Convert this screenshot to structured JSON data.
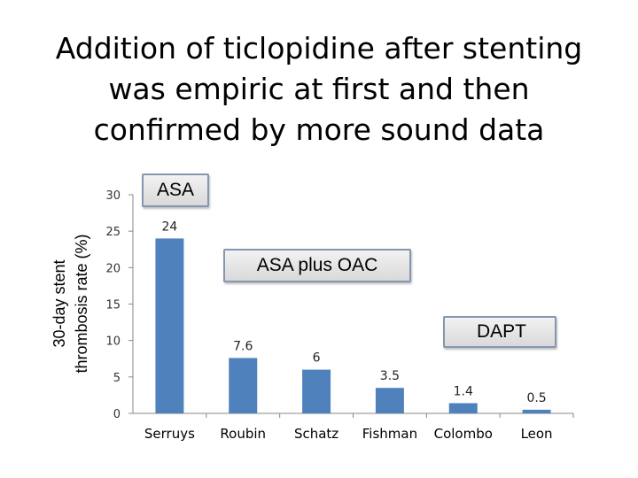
{
  "slide": {
    "title_lines": [
      "Addition of ticlopidine after stenting",
      "was empiric at first and then",
      "confirmed by more sound data"
    ]
  },
  "annotations": {
    "asa": "ASA",
    "asa_oac": "ASA plus OAC",
    "dapt": "DAPT"
  },
  "colors": {
    "bar": "#4f81bd",
    "axis": "#888888"
  },
  "chart_data": {
    "type": "bar",
    "categories": [
      "Serruys",
      "Roubin",
      "Schatz",
      "Fishman",
      "Colombo",
      "Leon"
    ],
    "values": [
      24,
      7.6,
      6,
      3.5,
      1.4,
      0.5
    ],
    "value_labels": [
      "24",
      "7.6",
      "6",
      "3.5",
      "1.4",
      "0.5"
    ],
    "title": "",
    "xlabel": "",
    "ylabel_lines": [
      "30-day stent",
      "thrombosis rate (%)"
    ],
    "ylim": [
      0,
      30
    ],
    "yticks": [
      0,
      5,
      10,
      15,
      20,
      25,
      30
    ],
    "grid": false,
    "legend": "none"
  }
}
